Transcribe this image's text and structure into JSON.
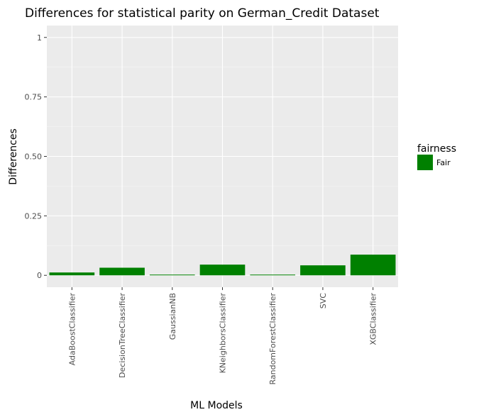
{
  "chart_data": {
    "type": "bar",
    "title": "Differences for statistical parity on German_Credit Dataset",
    "xlabel": "ML Models",
    "ylabel": "Differences",
    "categories": [
      "AdaBoostClassifier",
      "DecisionTreeClassifier",
      "GaussianNB",
      "KNeighborsClassifier",
      "RandomForestClassifier",
      "SVC",
      "XGBClassifier"
    ],
    "series": [
      {
        "name": "Fair",
        "values": [
          0.012,
          0.032,
          0.003,
          0.045,
          0.003,
          0.042,
          0.087
        ]
      }
    ],
    "ylim": [
      -0.05,
      1.05
    ],
    "yticks": [
      0,
      0.25,
      0.5,
      0.75,
      1
    ],
    "ytick_labels": [
      "0",
      "0.25",
      "0.50",
      "0.75",
      "1"
    ],
    "grid": true,
    "legend": {
      "title": "fairness",
      "position": "right"
    },
    "colors": {
      "Fair": "#008000",
      "panel": "#ebebeb",
      "grid_major": "#ffffff",
      "grid_minor": "#f5f5f5"
    }
  }
}
